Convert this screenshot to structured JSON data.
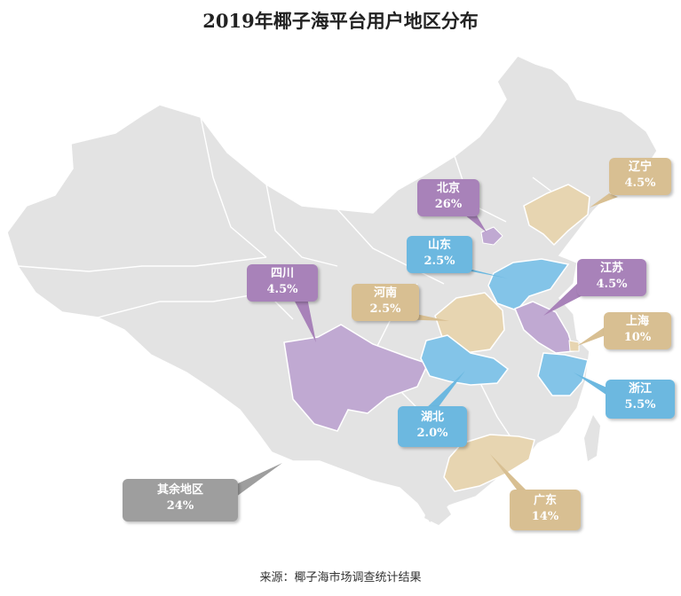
{
  "title": "2019年椰子海平台用户地区分布",
  "source": "来源：椰子海市场调查统计结果",
  "colors": {
    "purple": "#a882b9",
    "blue": "#6cb8e0",
    "tan": "#d8bf92",
    "gray": "#9e9e9e",
    "map": "#e3e3e3"
  },
  "chart_data": {
    "type": "map",
    "title": "2019年椰子海平台用户地区分布",
    "regions": [
      {
        "name": "北京",
        "value": "26%",
        "color": "purple"
      },
      {
        "name": "辽宁",
        "value": "4.5%",
        "color": "tan"
      },
      {
        "name": "山东",
        "value": "2.5%",
        "color": "blue"
      },
      {
        "name": "四川",
        "value": "4.5%",
        "color": "purple"
      },
      {
        "name": "河南",
        "value": "2.5%",
        "color": "tan"
      },
      {
        "name": "江苏",
        "value": "4.5%",
        "color": "purple"
      },
      {
        "name": "上海",
        "value": "10%",
        "color": "tan"
      },
      {
        "name": "浙江",
        "value": "5.5%",
        "color": "blue"
      },
      {
        "name": "湖北",
        "value": "2.0%",
        "color": "blue"
      },
      {
        "name": "广东",
        "value": "14%",
        "color": "tan"
      },
      {
        "name": "其余地区",
        "value": "24%",
        "color": "gray"
      }
    ]
  }
}
